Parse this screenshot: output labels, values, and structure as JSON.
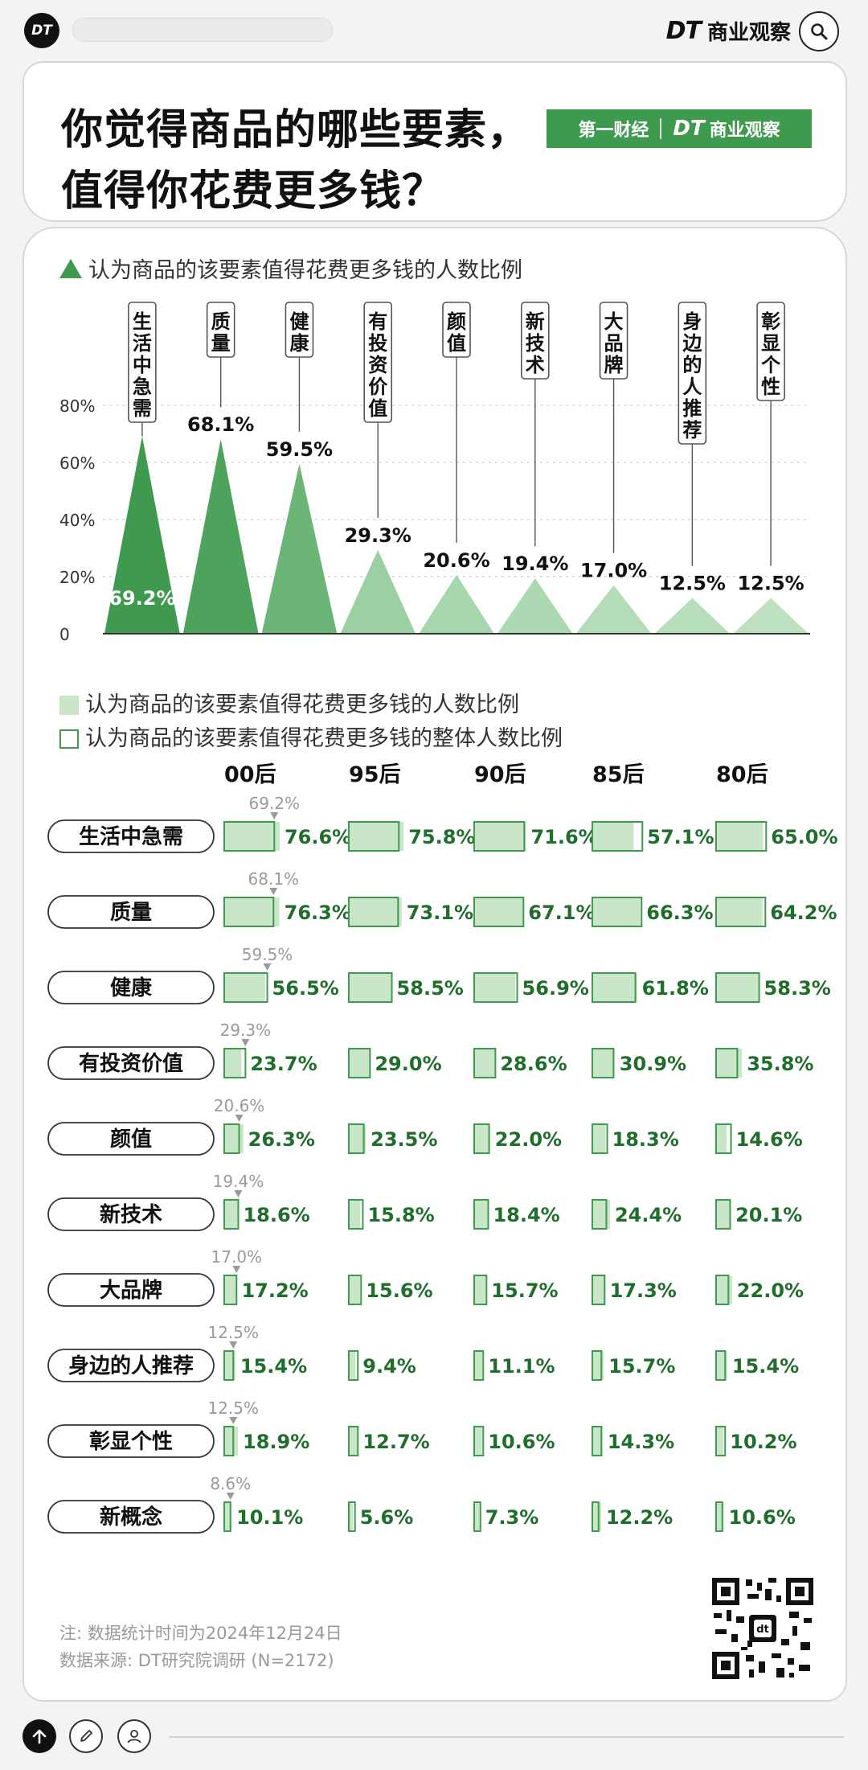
{
  "top_bar": {
    "logo_text": "DT",
    "brand_prefix": "DT",
    "brand_name": "商业观察"
  },
  "title": {
    "line1": "你觉得商品的哪些要素，",
    "line2": "值得你花费更多钱？",
    "logo_left": "第一财经",
    "logo_right_prefix": "DT",
    "logo_right_name": "商业观察"
  },
  "legend_top": "认为商品的该要素值得花费更多钱的人数比例",
  "legend_bottom": {
    "filled": "认为商品的该要素值得花费更多钱的人数比例",
    "outline": "认为商品的该要素值得花费更多钱的整体人数比例"
  },
  "colors": {
    "dark_green": "#3f9a4f",
    "light_green": "#c9e6c9",
    "value_text": "#1f6e2c",
    "ref_gray": "#9a9a9a"
  },
  "chart_data": [
    {
      "type": "bar",
      "style": "triangle",
      "categories": [
        "生活中急需",
        "质量",
        "健康",
        "有投资价值",
        "颜值",
        "新技术",
        "大品牌",
        "身边的人推荐",
        "彰显个性"
      ],
      "values": [
        69.2,
        68.1,
        59.5,
        29.3,
        20.6,
        19.4,
        17.0,
        12.5,
        12.5
      ],
      "value_labels": [
        "69.2%",
        "68.1%",
        "59.5%",
        "29.3%",
        "20.6%",
        "19.4%",
        "17.0%",
        "12.5%",
        "12.5%"
      ],
      "y_ticks": [
        "0",
        "20%",
        "40%",
        "60%",
        "80%"
      ],
      "y_tick_values": [
        0,
        20,
        40,
        60,
        80
      ],
      "ylim": [
        0,
        80
      ],
      "grid": true,
      "legend": "认为商品的该要素值得花费更多钱的人数比例"
    },
    {
      "type": "bar",
      "style": "small-multiples",
      "categories": [
        "生活中急需",
        "质量",
        "健康",
        "有投资价值",
        "颜值",
        "新技术",
        "大品牌",
        "身边的人推荐",
        "彰显个性",
        "新概念"
      ],
      "overall": [
        69.2,
        68.1,
        59.5,
        29.3,
        20.6,
        19.4,
        17.0,
        12.5,
        12.5,
        8.6
      ],
      "overall_labels": [
        "69.2%",
        "68.1%",
        "59.5%",
        "29.3%",
        "20.6%",
        "19.4%",
        "17.0%",
        "12.5%",
        "12.5%",
        "8.6%"
      ],
      "series": [
        {
          "name": "00后",
          "values": [
            76.6,
            76.3,
            56.5,
            23.7,
            26.3,
            18.6,
            17.2,
            15.4,
            18.9,
            10.1
          ],
          "labels": [
            "76.6%",
            "76.3%",
            "56.5%",
            "23.7%",
            "26.3%",
            "18.6%",
            "17.2%",
            "15.4%",
            "18.9%",
            "10.1%"
          ]
        },
        {
          "name": "95后",
          "values": [
            75.8,
            73.1,
            58.5,
            29.0,
            23.5,
            15.8,
            15.6,
            9.4,
            12.7,
            5.6
          ],
          "labels": [
            "75.8%",
            "73.1%",
            "58.5%",
            "29.0%",
            "23.5%",
            "15.8%",
            "15.6%",
            "9.4%",
            "12.7%",
            "5.6%"
          ]
        },
        {
          "name": "90后",
          "values": [
            71.6,
            67.1,
            56.9,
            28.6,
            22.0,
            18.4,
            15.7,
            11.1,
            10.6,
            7.3
          ],
          "labels": [
            "71.6%",
            "67.1%",
            "56.9%",
            "28.6%",
            "22.0%",
            "18.4%",
            "15.7%",
            "11.1%",
            "10.6%",
            "7.3%"
          ]
        },
        {
          "name": "85后",
          "values": [
            57.1,
            66.3,
            61.8,
            30.9,
            18.3,
            24.4,
            17.3,
            15.7,
            14.3,
            12.2
          ],
          "labels": [
            "57.1%",
            "66.3%",
            "61.8%",
            "30.9%",
            "18.3%",
            "24.4%",
            "17.3%",
            "15.7%",
            "14.3%",
            "12.2%"
          ]
        },
        {
          "name": "80后",
          "values": [
            65.0,
            64.2,
            58.3,
            35.8,
            14.6,
            20.1,
            22.0,
            15.4,
            10.2,
            10.6
          ],
          "labels": [
            "65.0%",
            "64.2%",
            "58.3%",
            "35.8%",
            "14.6%",
            "20.1%",
            "22.0%",
            "15.4%",
            "10.2%",
            "10.6%"
          ]
        }
      ]
    }
  ],
  "footer": {
    "note": "注: 数据统计时间为2024年12月24日",
    "source": "数据来源: DT研究院调研 (N=2172)"
  }
}
